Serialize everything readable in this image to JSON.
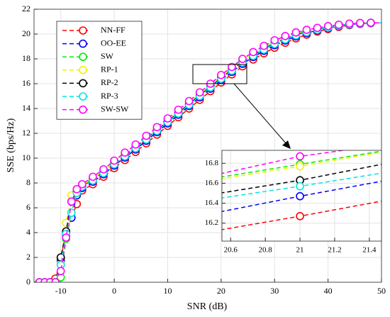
{
  "chart_data": [
    {
      "type": "line",
      "xlabel": "SNR (dB)",
      "ylabel": "SSE (bps/Hz)",
      "x": [
        -15,
        -14,
        -13,
        -12,
        -11,
        -10,
        -9,
        -8,
        -7,
        -6,
        -4,
        -2,
        0,
        2,
        4,
        6,
        8,
        10,
        12,
        14,
        16,
        18,
        20,
        22,
        24,
        26,
        28,
        30,
        32,
        34,
        36,
        38,
        40,
        42,
        44,
        46,
        48,
        50
      ],
      "xlim": [
        -15,
        50
      ],
      "xticks": [
        -10,
        0,
        10,
        20,
        30,
        40,
        50
      ],
      "ylim": [
        0,
        22
      ],
      "yticks": [
        0,
        2,
        4,
        6,
        8,
        10,
        12,
        14,
        16,
        18,
        20,
        22
      ],
      "grid": true,
      "legend": "upper left",
      "series": [
        {
          "name": "NN-FF",
          "color": "#ff0000",
          "values": [
            0,
            0,
            0,
            0,
            0.3,
            1.9,
            4.0,
            5.2,
            6.3,
            7.4,
            7.9,
            8.5,
            9.2,
            9.85,
            10.5,
            11.2,
            11.9,
            12.6,
            13.3,
            14.0,
            14.7,
            15.4,
            16.1,
            16.75,
            17.4,
            17.95,
            18.45,
            18.9,
            19.3,
            19.65,
            19.95,
            20.2,
            20.4,
            20.58,
            20.72,
            20.82,
            20.88,
            20.9
          ]
        },
        {
          "name": "OO-EE",
          "color": "#0000ff",
          "values": [
            0,
            0,
            0,
            0,
            0,
            1.7,
            3.8,
            5.2,
            7.0,
            7.6,
            8.1,
            8.7,
            9.4,
            10.05,
            10.7,
            11.4,
            12.1,
            12.8,
            13.5,
            14.2,
            14.9,
            15.6,
            16.3,
            16.95,
            17.6,
            18.15,
            18.65,
            19.1,
            19.48,
            19.81,
            20.08,
            20.3,
            20.48,
            20.64,
            20.76,
            20.84,
            20.89,
            20.9
          ]
        },
        {
          "name": "SW",
          "color": "#00ee00",
          "values": [
            0,
            0,
            0,
            0,
            0,
            0.4,
            3.5,
            5.6,
            7.2,
            7.8,
            8.42,
            9.02,
            9.72,
            10.37,
            11.02,
            11.72,
            12.42,
            13.12,
            13.82,
            14.52,
            15.22,
            15.92,
            16.62,
            17.27,
            17.92,
            18.47,
            18.97,
            19.42,
            19.77,
            20.07,
            20.29,
            20.46,
            20.61,
            20.74,
            20.82,
            20.88,
            20.91,
            20.9
          ]
        },
        {
          "name": "RP-1",
          "color": "#f2f200",
          "values": [
            0,
            0,
            0,
            0,
            0,
            1.5,
            4.8,
            7.0,
            7.5,
            7.8,
            8.4,
            9.0,
            9.7,
            10.35,
            11.0,
            11.7,
            12.4,
            13.1,
            13.8,
            14.5,
            15.2,
            15.9,
            16.6,
            17.25,
            17.9,
            18.45,
            18.95,
            19.4,
            19.75,
            20.05,
            20.28,
            20.45,
            20.6,
            20.73,
            20.82,
            20.88,
            20.91,
            20.9
          ]
        },
        {
          "name": "RP-2",
          "color": "#000000",
          "values": [
            0,
            0,
            0,
            0,
            0,
            2.0,
            4.1,
            6.5,
            7.3,
            7.7,
            8.26,
            8.86,
            9.56,
            10.21,
            10.86,
            11.56,
            12.26,
            12.96,
            13.66,
            14.36,
            15.06,
            15.76,
            16.46,
            17.11,
            17.76,
            18.31,
            18.81,
            19.26,
            19.62,
            19.94,
            20.18,
            20.38,
            20.54,
            20.69,
            20.79,
            20.86,
            20.9,
            20.9
          ]
        },
        {
          "name": "RP-3",
          "color": "#00e5e5",
          "values": [
            0,
            0,
            0,
            0,
            0,
            1.4,
            3.9,
            5.6,
            7.2,
            7.7,
            8.2,
            8.8,
            9.5,
            10.15,
            10.8,
            11.5,
            12.2,
            12.9,
            13.6,
            14.3,
            15.0,
            15.7,
            16.4,
            17.05,
            17.7,
            18.25,
            18.75,
            19.2,
            19.57,
            19.89,
            20.15,
            20.35,
            20.52,
            20.67,
            20.78,
            20.86,
            20.9,
            20.9
          ]
        },
        {
          "name": "SW-SW",
          "color": "#ff00ff",
          "values": [
            0,
            0,
            0,
            0,
            0,
            0.9,
            3.6,
            6.5,
            7.5,
            7.9,
            8.5,
            9.1,
            9.8,
            10.45,
            11.1,
            11.8,
            12.5,
            13.2,
            13.9,
            14.6,
            15.3,
            16.0,
            16.7,
            17.35,
            18.0,
            18.55,
            19.05,
            19.5,
            19.84,
            20.13,
            20.34,
            20.5,
            20.64,
            20.75,
            20.84,
            20.89,
            20.91,
            20.9
          ]
        }
      ]
    },
    {
      "type": "line",
      "x": [
        20.5,
        21,
        21.5
      ],
      "xlim": [
        20.55,
        21.47
      ],
      "xticks": [
        20.6,
        20.8,
        21,
        21.2,
        21.4
      ],
      "ylim": [
        16.02,
        16.93
      ],
      "yticks": [
        16.2,
        16.4,
        16.6,
        16.8
      ],
      "grid": true,
      "series": [
        {
          "color": "#ff0000",
          "values": [
            16.12,
            16.27,
            16.43
          ]
        },
        {
          "color": "#0000ff",
          "values": [
            16.3,
            16.47,
            16.63
          ]
        },
        {
          "color": "#00ee00",
          "values": [
            16.65,
            16.79,
            16.93
          ]
        },
        {
          "color": "#f2f200",
          "values": [
            16.63,
            16.77,
            16.92
          ]
        },
        {
          "color": "#000000",
          "values": [
            16.49,
            16.63,
            16.8
          ]
        },
        {
          "color": "#00e5e5",
          "values": [
            16.44,
            16.57,
            16.71
          ]
        },
        {
          "color": "#ff00ff",
          "values": [
            16.68,
            16.87,
            16.99
          ]
        }
      ]
    }
  ]
}
